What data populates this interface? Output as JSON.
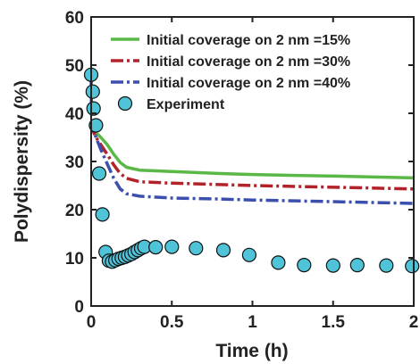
{
  "chart_data": {
    "type": "line",
    "xlabel": "Time (h)",
    "ylabel": "Polydispersity (%)",
    "xlim": [
      0,
      2
    ],
    "ylim": [
      0,
      60
    ],
    "xticks": [
      0,
      0.5,
      1,
      1.5,
      2
    ],
    "xtick_labels": [
      "0",
      "0.5",
      "1",
      "1.5",
      "2"
    ],
    "yticks": [
      0,
      10,
      20,
      30,
      40,
      50,
      60
    ],
    "ytick_labels": [
      "0",
      "10",
      "20",
      "30",
      "40",
      "50",
      "60"
    ],
    "grid": false,
    "legend_position": "top-right",
    "series": [
      {
        "name": "Initial coverage on 2 nm =15%",
        "style": "solid",
        "color": "#5ab946",
        "x": [
          0,
          0.01,
          0.03,
          0.06,
          0.1,
          0.14,
          0.18,
          0.22,
          0.3,
          0.5,
          0.8,
          1.0,
          1.3,
          1.6,
          2.0
        ],
        "y": [
          38,
          37,
          36,
          35,
          33.5,
          31.5,
          29.8,
          28.8,
          28.2,
          27.9,
          27.5,
          27.3,
          27.1,
          26.9,
          26.6
        ]
      },
      {
        "name": "Initial coverage on 2 nm =30%",
        "style": "dashdot",
        "color": "#b3222b",
        "x": [
          0,
          0.01,
          0.03,
          0.06,
          0.1,
          0.14,
          0.18,
          0.22,
          0.3,
          0.5,
          0.8,
          1.0,
          1.3,
          1.6,
          2.0
        ],
        "y": [
          38,
          36.5,
          35,
          33.5,
          31.5,
          29.3,
          27.5,
          26.5,
          25.8,
          25.5,
          25.2,
          25.0,
          24.8,
          24.6,
          24.3
        ]
      },
      {
        "name": "Initial coverage on 2 nm =40%",
        "style": "dashdot",
        "color": "#3b4fae",
        "x": [
          0,
          0.002,
          0.01,
          0.03,
          0.06,
          0.1,
          0.14,
          0.18,
          0.22,
          0.3,
          0.5,
          0.8,
          1.0,
          1.3,
          1.6,
          2.0
        ],
        "y": [
          48,
          40,
          37,
          35,
          32.5,
          29.5,
          26.5,
          24.3,
          23.3,
          22.8,
          22.4,
          22.2,
          22.0,
          21.8,
          21.6,
          21.3
        ]
      },
      {
        "name": "Experiment",
        "style": "markers",
        "color": "#4fc3d7",
        "x": [
          0.0,
          0.01,
          0.015,
          0.03,
          0.05,
          0.07,
          0.09,
          0.11,
          0.13,
          0.15,
          0.17,
          0.19,
          0.21,
          0.23,
          0.25,
          0.27,
          0.29,
          0.31,
          0.33,
          0.4,
          0.5,
          0.65,
          0.82,
          0.98,
          1.16,
          1.32,
          1.5,
          1.65,
          1.83,
          1.99
        ],
        "y": [
          48,
          44.5,
          41,
          37.5,
          27.5,
          19,
          11.2,
          9.4,
          9.2,
          9.5,
          9.8,
          10.0,
          10.2,
          10.5,
          10.8,
          11.2,
          11.6,
          12.0,
          12.3,
          12.2,
          12.3,
          12.0,
          11.6,
          10.6,
          9.0,
          8.5,
          8.4,
          8.5,
          8.4,
          8.3
        ]
      }
    ]
  }
}
